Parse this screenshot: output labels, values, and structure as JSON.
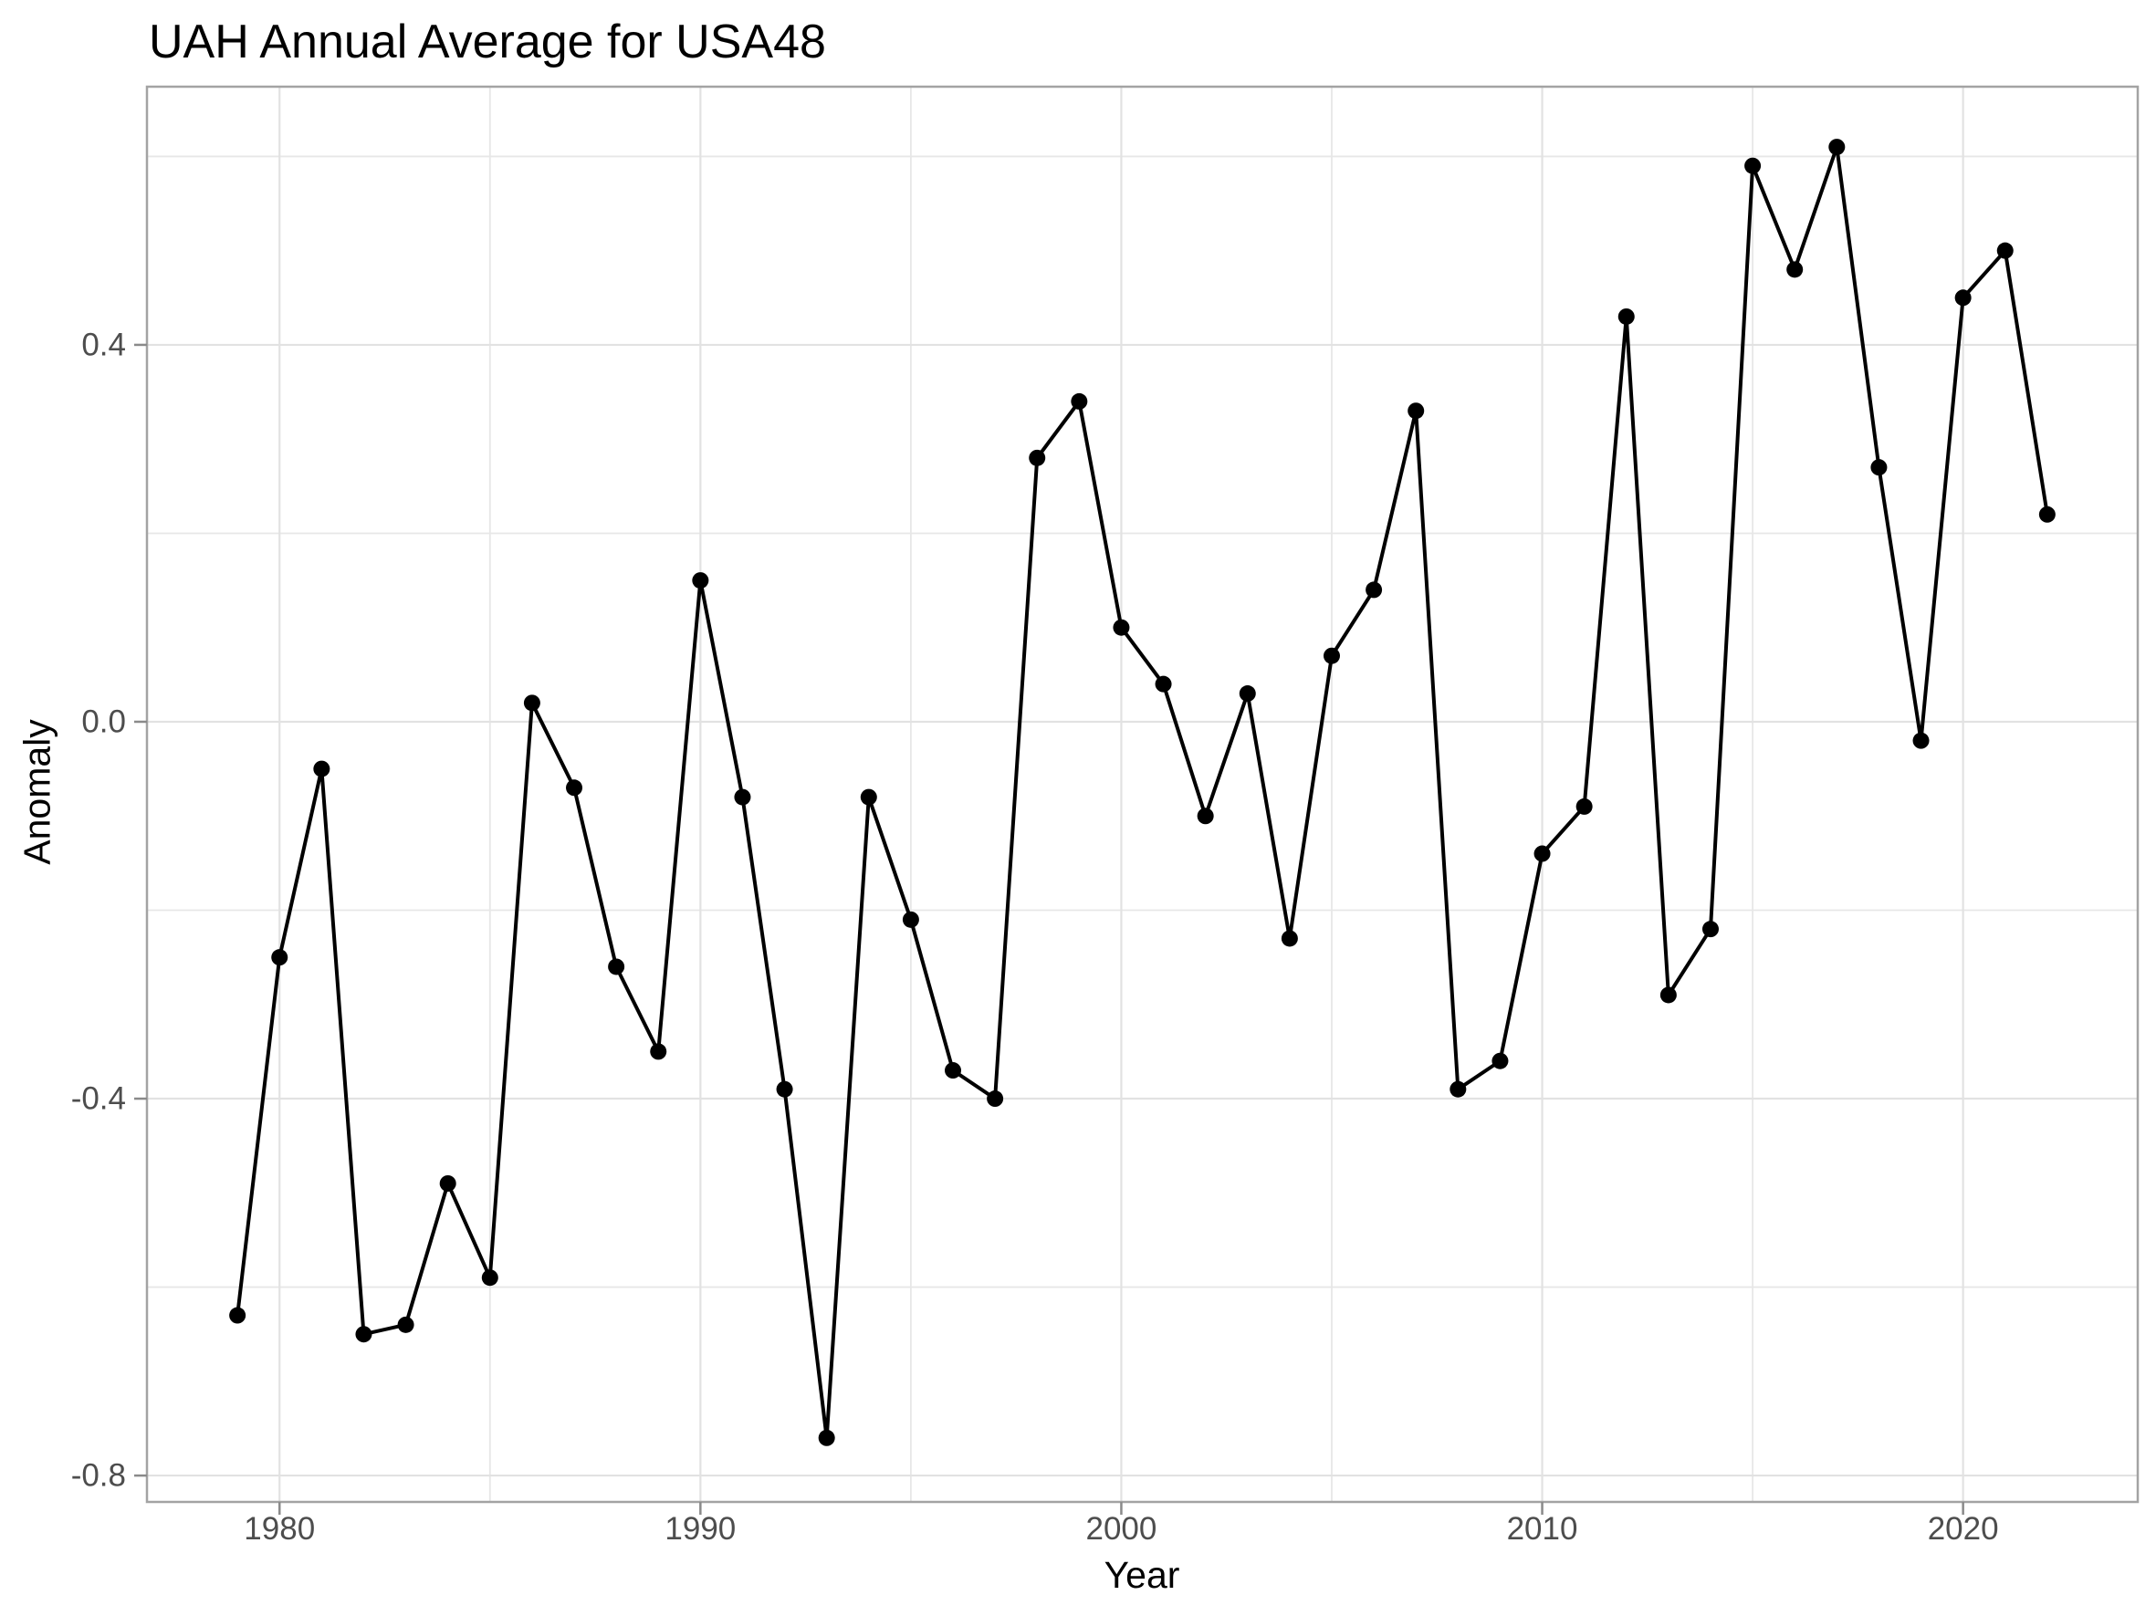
{
  "chart_data": {
    "type": "line",
    "title": "UAH Annual Average for USA48",
    "xlabel": "Year",
    "ylabel": "Anomaly",
    "x": [
      1979,
      1980,
      1981,
      1982,
      1983,
      1984,
      1985,
      1986,
      1987,
      1988,
      1989,
      1990,
      1991,
      1992,
      1993,
      1994,
      1995,
      1996,
      1997,
      1998,
      1999,
      2000,
      2001,
      2002,
      2003,
      2004,
      2005,
      2006,
      2007,
      2008,
      2009,
      2010,
      2011,
      2012,
      2013,
      2014,
      2015,
      2016,
      2017,
      2018,
      2019,
      2020,
      2021,
      2022
    ],
    "values": [
      -0.63,
      -0.25,
      -0.05,
      -0.65,
      -0.64,
      -0.49,
      -0.59,
      0.02,
      -0.07,
      -0.26,
      -0.35,
      0.15,
      -0.08,
      -0.39,
      -0.76,
      -0.08,
      -0.21,
      -0.37,
      -0.4,
      0.28,
      0.34,
      0.1,
      0.04,
      -0.1,
      0.03,
      -0.23,
      0.07,
      0.14,
      0.33,
      -0.39,
      -0.36,
      -0.14,
      -0.09,
      0.43,
      -0.29,
      -0.22,
      0.59,
      0.48,
      0.61,
      0.27,
      -0.02,
      0.45,
      0.5,
      0.22
    ],
    "series_name": "UAH USA48 annual anomaly",
    "marker": "filled-circle",
    "x_ticks": [
      1980,
      1990,
      2000,
      2010,
      2020
    ],
    "x_tick_labels": [
      "1980",
      "1990",
      "2000",
      "2010",
      "2020"
    ],
    "x_minor_ticks": [
      1985,
      1995,
      2005,
      2015
    ],
    "y_ticks": [
      0.4,
      0.0,
      -0.4,
      -0.8
    ],
    "y_tick_labels": [
      "0.4",
      "0.0",
      "-0.4",
      "-0.8"
    ],
    "y_minor_ticks": [
      0.6,
      0.2,
      -0.2,
      -0.6
    ],
    "xlim": [
      1976.85,
      2024.15
    ],
    "ylim": [
      -0.828,
      0.674
    ],
    "grid": "major-and-minor",
    "legend": "none",
    "colors": {
      "line": "#000000",
      "point": "#000000",
      "grid_major": "#e2e2e2",
      "grid_minor": "#e7e7e7",
      "panel_border": "#a3a3a3",
      "tick": "#8a8a8a",
      "tick_label": "#4d4d4d",
      "title": "#000000",
      "axis_title": "#000000",
      "background": "#ffffff"
    }
  }
}
